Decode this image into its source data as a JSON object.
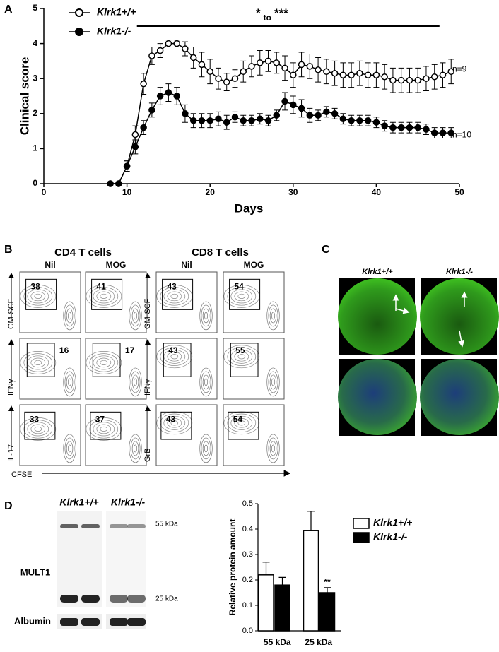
{
  "panels": [
    "A",
    "B",
    "C",
    "D"
  ],
  "chart_data": [
    {
      "type": "line",
      "x_label": "Days",
      "y_label": "Clinical score",
      "x": [
        8,
        9,
        10,
        11,
        12,
        13,
        14,
        15,
        16,
        17,
        18,
        19,
        20,
        21,
        22,
        23,
        24,
        25,
        26,
        27,
        28,
        29,
        30,
        31,
        32,
        33,
        34,
        35,
        36,
        37,
        38,
        39,
        40,
        41,
        42,
        43,
        44,
        45,
        46,
        47,
        48,
        49
      ],
      "series": [
        {
          "name": "Klrk1+/+",
          "marker": "open",
          "color": "#000000",
          "counts_label": "n=9",
          "values": [
            0,
            0,
            0.5,
            1.4,
            2.85,
            3.65,
            3.8,
            4.0,
            4.0,
            3.85,
            3.6,
            3.4,
            3.2,
            3.0,
            2.9,
            3.0,
            3.2,
            3.35,
            3.45,
            3.5,
            3.45,
            3.3,
            3.1,
            3.4,
            3.35,
            3.25,
            3.2,
            3.15,
            3.1,
            3.1,
            3.15,
            3.1,
            3.1,
            3.05,
            2.95,
            2.95,
            2.95,
            2.95,
            3.0,
            3.05,
            3.1,
            3.2
          ],
          "errors": [
            0,
            0,
            0.15,
            0.25,
            0.3,
            0.25,
            0.2,
            0.1,
            0.1,
            0.2,
            0.3,
            0.35,
            0.35,
            0.3,
            0.25,
            0.25,
            0.3,
            0.3,
            0.35,
            0.3,
            0.3,
            0.35,
            0.35,
            0.35,
            0.35,
            0.35,
            0.35,
            0.35,
            0.35,
            0.35,
            0.35,
            0.35,
            0.35,
            0.35,
            0.35,
            0.35,
            0.35,
            0.35,
            0.35,
            0.35,
            0.35,
            0.35
          ]
        },
        {
          "name": "Klrk1-/-",
          "marker": "filled",
          "color": "#000000",
          "counts_label": "n=10",
          "values": [
            0,
            0,
            0.5,
            1.05,
            1.6,
            2.1,
            2.5,
            2.6,
            2.5,
            2.0,
            1.8,
            1.8,
            1.8,
            1.85,
            1.75,
            1.9,
            1.8,
            1.8,
            1.85,
            1.8,
            1.95,
            2.35,
            2.25,
            2.15,
            1.95,
            1.95,
            2.05,
            2.0,
            1.85,
            1.8,
            1.8,
            1.8,
            1.75,
            1.65,
            1.6,
            1.6,
            1.6,
            1.6,
            1.55,
            1.45,
            1.45,
            1.45
          ],
          "errors": [
            0,
            0,
            0.15,
            0.2,
            0.2,
            0.2,
            0.25,
            0.25,
            0.25,
            0.25,
            0.2,
            0.2,
            0.2,
            0.2,
            0.2,
            0.15,
            0.15,
            0.15,
            0.15,
            0.15,
            0.15,
            0.25,
            0.25,
            0.25,
            0.2,
            0.15,
            0.15,
            0.15,
            0.15,
            0.15,
            0.15,
            0.15,
            0.15,
            0.15,
            0.15,
            0.15,
            0.15,
            0.15,
            0.15,
            0.15,
            0.15,
            0.15
          ]
        }
      ],
      "significance": {
        "star_low": "*",
        "to": "to",
        "star_high": "***",
        "xrange": [
          11.2,
          47.6
        ]
      },
      "xlim": [
        0,
        50
      ],
      "xticks": [
        0,
        10,
        20,
        30,
        40,
        50
      ],
      "ylim": [
        0,
        5
      ],
      "yticks": [
        0,
        1,
        2,
        3,
        4,
        5
      ]
    },
    {
      "type": "bar",
      "y_label": "Relative protein amount",
      "categories": [
        "55 kDa",
        "25 kDa"
      ],
      "series": [
        {
          "name": "Klrk1+/+",
          "color": "#ffffff",
          "values": [
            0.22,
            0.395
          ],
          "errors": [
            0.05,
            0.075
          ]
        },
        {
          "name": "Klrk1-/-",
          "color": "#000000",
          "values": [
            0.18,
            0.15
          ],
          "errors": [
            0.03,
            0.02
          ],
          "annotations": [
            null,
            "**"
          ]
        }
      ],
      "ylim": [
        0,
        0.5
      ],
      "yticks": [
        {
          "value": 0,
          "label": "0.0"
        },
        0.1,
        0.2,
        0.3,
        0.4,
        0.5
      ]
    }
  ],
  "flow": {
    "x_label": "CFSE",
    "groups": [
      {
        "title": "CD4 T cells",
        "columns": [
          "Nil",
          "MOG"
        ],
        "rows": [
          {
            "label": "GM-SCF",
            "values": [
              38,
              41
            ]
          },
          {
            "label": "IFNγ",
            "values": [
              16,
              17
            ]
          },
          {
            "label": "IL-17",
            "values": [
              33,
              37
            ]
          }
        ]
      },
      {
        "title": "CD8 T cells",
        "columns": [
          "Nil",
          "MOG"
        ],
        "rows": [
          {
            "label": "GM-SCF",
            "values": [
              43,
              54
            ]
          },
          {
            "label": "IFNγ",
            "values": [
              43,
              55
            ]
          },
          {
            "label": "GrB",
            "values": [
              43,
              54
            ]
          }
        ]
      }
    ]
  },
  "histology": {
    "columns": [
      "Klrk1+/+",
      "Klrk1-/-"
    ]
  },
  "blot": {
    "columns": [
      "Klrk1+/+",
      "Klrk1-/-"
    ],
    "rows": [
      "MULT1",
      "Albumin"
    ],
    "bands": [
      "55 kDa",
      "25 kDa"
    ]
  }
}
